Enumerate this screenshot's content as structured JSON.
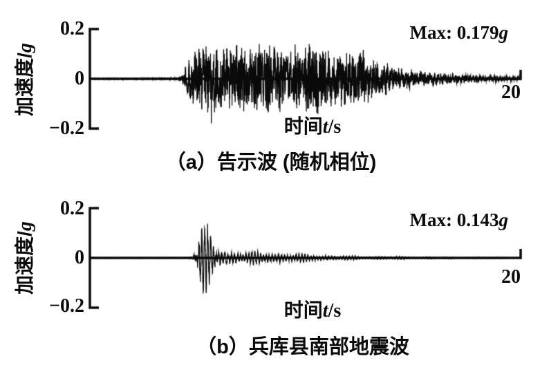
{
  "figure": {
    "background": "#ffffff",
    "ink": "#0a0a0a"
  },
  "charts": [
    {
      "caption": "（a）告示波 (随机相位)",
      "max_prefix": "Max: 0.179",
      "max_unit": "g",
      "ylabel_text": "加速度/",
      "ylabel_unit": "g",
      "xlabel_text": "时间",
      "xlabel_var": "t",
      "xlabel_unit": "/s",
      "ytick_top": "0.2",
      "ytick_mid": "0",
      "ytick_bot": "−0.2",
      "xtick_end": "20"
    },
    {
      "caption": "（b）兵库县南部地震波",
      "max_prefix": "Max: 0.143",
      "max_unit": "g",
      "ylabel_text": "加速度/",
      "ylabel_unit": "g",
      "xlabel_text": "时间",
      "xlabel_var": "t",
      "xlabel_unit": "/s",
      "ytick_top": "0.2",
      "ytick_mid": "0",
      "ytick_bot": "−0.2",
      "xtick_end": "20"
    }
  ],
  "chart_data": [
    {
      "type": "line",
      "title": "(a) 告示波 (随机相位)",
      "xlabel": "时间t/s",
      "ylabel": "加速度/g",
      "xlim": [
        0,
        20
      ],
      "ylim": [
        -0.2,
        0.2
      ],
      "xticks": [
        20
      ],
      "yticks": [
        0.2,
        0,
        -0.2
      ],
      "grid": false,
      "legend": false,
      "annotation": "Max: 0.179g",
      "peak_acceleration_g": 0.179,
      "series": [
        {
          "name": "加速度",
          "synthesis": {
            "seed": 20179,
            "dt": 0.008,
            "components": 9,
            "freq_min_hz": 1.5,
            "freq_max_hz": 9.5,
            "noise_mix": 0.55,
            "envelope": [
              [
                0,
                0.002
              ],
              [
                4.1,
                0.003
              ],
              [
                4.35,
                0.03
              ],
              [
                4.6,
                0.09
              ],
              [
                5.0,
                0.13
              ],
              [
                5.5,
                0.155
              ],
              [
                6.5,
                0.13
              ],
              [
                7.5,
                0.15
              ],
              [
                8.3,
                0.17
              ],
              [
                9.0,
                0.12
              ],
              [
                9.8,
                0.14
              ],
              [
                10.4,
                0.17
              ],
              [
                11.0,
                0.13
              ],
              [
                11.8,
                0.11
              ],
              [
                12.5,
                0.13
              ],
              [
                13.0,
                0.085
              ],
              [
                13.8,
                0.06
              ],
              [
                14.5,
                0.045
              ],
              [
                15.5,
                0.032
              ],
              [
                16.5,
                0.024
              ],
              [
                17.5,
                0.017
              ],
              [
                18.5,
                0.012
              ],
              [
                19.3,
                0.01
              ],
              [
                20,
                0.007
              ]
            ]
          }
        }
      ]
    },
    {
      "type": "line",
      "title": "(b) 兵库县南部地震波",
      "xlabel": "时间t/s",
      "ylabel": "加速度/g",
      "xlim": [
        0,
        20
      ],
      "ylim": [
        -0.2,
        0.2
      ],
      "xticks": [
        20
      ],
      "yticks": [
        0.2,
        0,
        -0.2
      ],
      "grid": false,
      "legend": false,
      "annotation": "Max: 0.143g",
      "peak_acceleration_g": 0.143,
      "series": [
        {
          "name": "加速度",
          "synthesis": {
            "seed": 20143,
            "dt": 0.008,
            "components": 4,
            "freq_min_hz": 5.0,
            "freq_max_hz": 7.8,
            "noise_mix": 0.18,
            "envelope": [
              [
                0,
                0.002
              ],
              [
                4.55,
                0.002
              ],
              [
                4.75,
                0.01
              ],
              [
                4.95,
                0.05
              ],
              [
                5.05,
                0.12
              ],
              [
                5.2,
                0.155
              ],
              [
                5.45,
                0.14
              ],
              [
                5.65,
                0.12
              ],
              [
                5.85,
                0.07
              ],
              [
                6.1,
                0.04
              ],
              [
                6.6,
                0.032
              ],
              [
                7.2,
                0.027
              ],
              [
                8.0,
                0.022
              ],
              [
                9.0,
                0.016
              ],
              [
                10.0,
                0.012
              ],
              [
                11.0,
                0.008
              ],
              [
                12.5,
                0.005
              ],
              [
                14.5,
                0.004
              ],
              [
                17.0,
                0.003
              ],
              [
                20,
                0.003
              ]
            ]
          }
        }
      ]
    }
  ]
}
